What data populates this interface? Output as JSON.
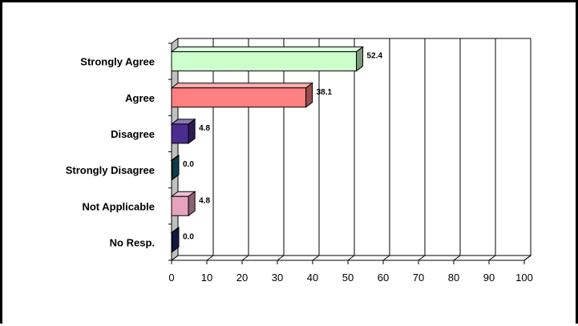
{
  "chart_data": {
    "type": "bar",
    "orientation": "horizontal",
    "three_d": true,
    "categories": [
      "Strongly Agree",
      "Agree",
      "Disagree",
      "Strongly Disagree",
      "Not Applicable",
      "No Resp."
    ],
    "values": [
      52.4,
      38.1,
      4.8,
      0.0,
      4.8,
      0.0
    ],
    "value_labels": [
      "52.4",
      "38.1",
      "4.8",
      "0.0",
      "4.8",
      "0.0"
    ],
    "colors": [
      "#ccffcc",
      "#ff8080",
      "#4b2d8f",
      "#0b6a7c",
      "#e6a3bd",
      "#1f2b6e"
    ],
    "xlim": [
      0,
      100
    ],
    "xticks": [
      0,
      10,
      20,
      30,
      40,
      50,
      60,
      70,
      80,
      90,
      100
    ],
    "grid": true,
    "title": "",
    "xlabel": "",
    "ylabel": ""
  }
}
